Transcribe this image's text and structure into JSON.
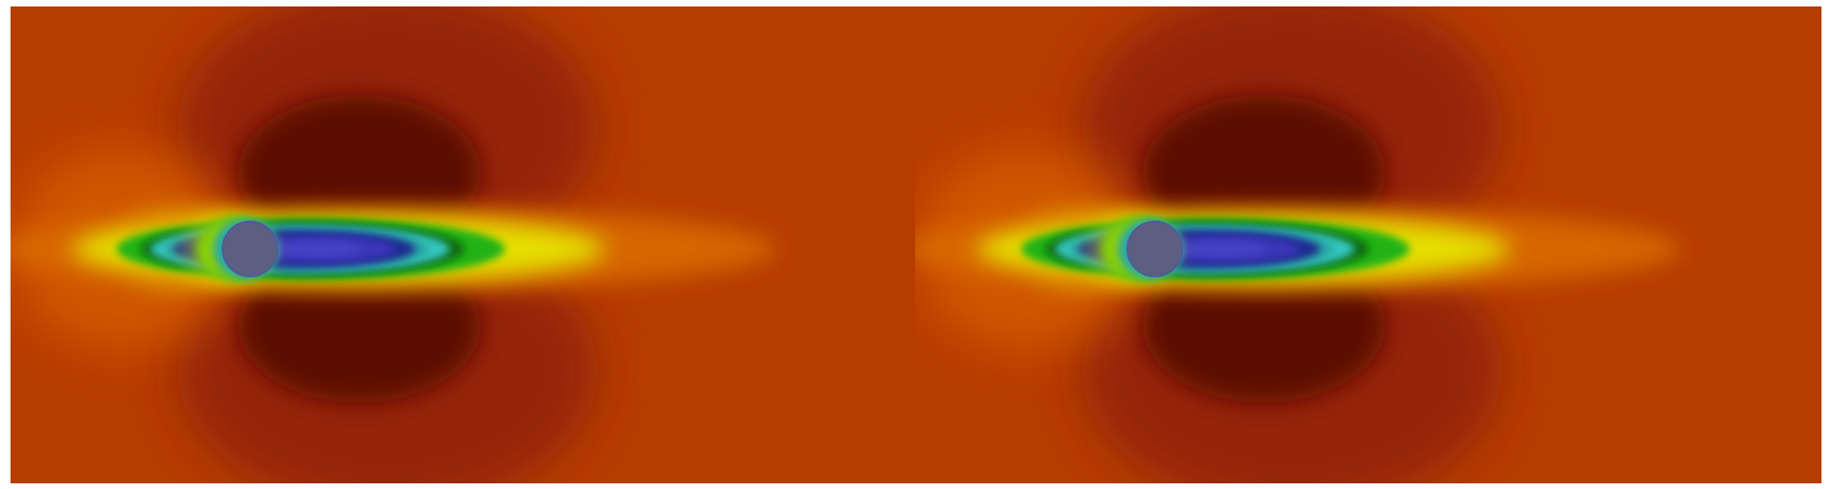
{
  "figure": {
    "panels": [
      {
        "id": "left"
      },
      {
        "id": "right"
      }
    ],
    "colors": {
      "background": "#ffffff",
      "field_base": "#b63d00",
      "field_dark": "#5a0a06",
      "field_mid_red": "#8a1d0a",
      "upstream_glow": "#d25a00",
      "yellow": "#e6e600",
      "green": "#23b219",
      "dark_green": "#0d6b10",
      "teal": "#2aa9a3",
      "cyan": "#36c7c2",
      "blue_dark": "#1f2a8f",
      "blue_core": "#3b36b8",
      "cylinder": "#5d5f80",
      "cylinder_edge": "#4c5aa5"
    }
  }
}
